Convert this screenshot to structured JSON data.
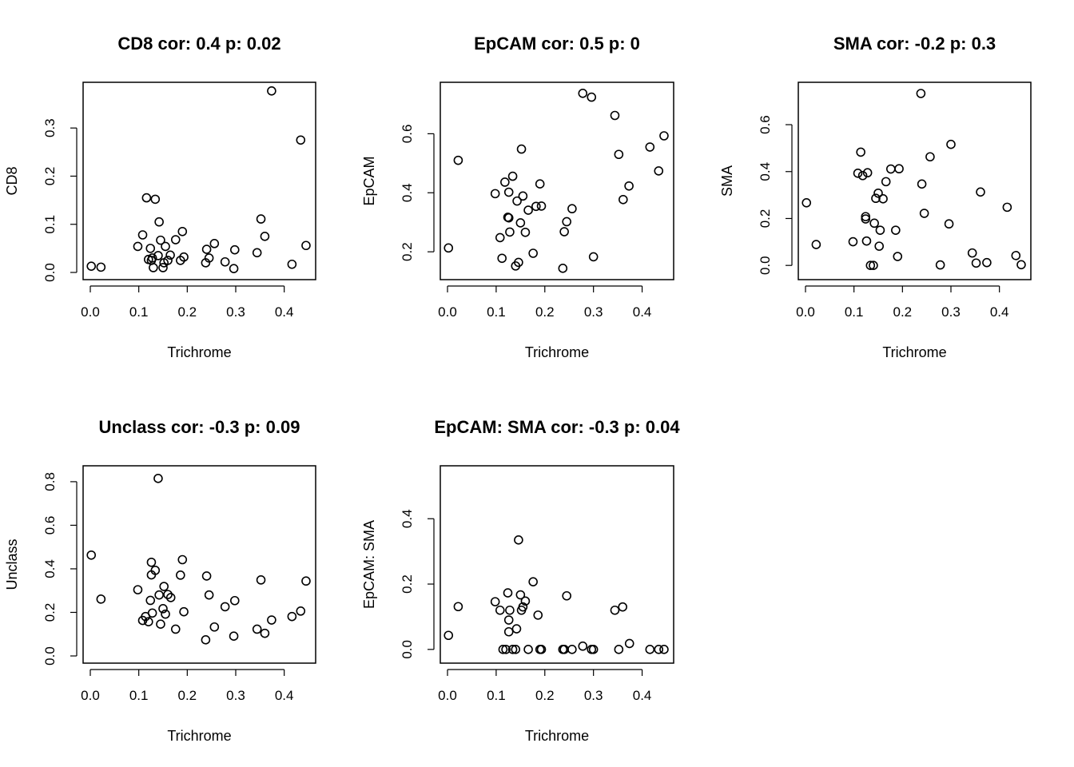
{
  "chart_data": [
    {
      "type": "scatter",
      "title": "CD8 cor: 0.4 p: 0.02",
      "xlabel": "Trichrome",
      "ylabel": "CD8",
      "xlim": [
        0.0,
        0.45
      ],
      "ylim": [
        0.0,
        0.38
      ],
      "xticks": [
        "0.0",
        "0.1",
        "0.2",
        "0.3",
        "0.4"
      ],
      "yticks": [
        "0.0",
        "0.1",
        "0.2",
        "0.3"
      ],
      "x": [
        0.002,
        0.022,
        0.098,
        0.108,
        0.116,
        0.12,
        0.124,
        0.126,
        0.128,
        0.13,
        0.134,
        0.14,
        0.142,
        0.145,
        0.15,
        0.152,
        0.155,
        0.16,
        0.165,
        0.176,
        0.186,
        0.19,
        0.193,
        0.238,
        0.24,
        0.245,
        0.256,
        0.278,
        0.296,
        0.298,
        0.344,
        0.352,
        0.36,
        0.374,
        0.416,
        0.434,
        0.445
      ],
      "y": [
        0.013,
        0.011,
        0.054,
        0.078,
        0.155,
        0.027,
        0.05,
        0.025,
        0.03,
        0.01,
        0.152,
        0.035,
        0.105,
        0.067,
        0.01,
        0.02,
        0.054,
        0.025,
        0.036,
        0.068,
        0.025,
        0.085,
        0.032,
        0.02,
        0.048,
        0.03,
        0.06,
        0.022,
        0.008,
        0.047,
        0.041,
        0.111,
        0.075,
        0.377,
        0.017,
        0.275,
        0.056
      ]
    },
    {
      "type": "scatter",
      "title": "EpCAM cor: 0.5 p: 0",
      "xlabel": "Trichrome",
      "ylabel": "EpCAM",
      "xlim": [
        0.0,
        0.45
      ],
      "ylim": [
        0.13,
        0.75
      ],
      "xticks": [
        "0.0",
        "0.1",
        "0.2",
        "0.3",
        "0.4"
      ],
      "yticks": [
        "0.2",
        "0.4",
        "0.6"
      ],
      "x": [
        0.002,
        0.022,
        0.098,
        0.108,
        0.112,
        0.118,
        0.124,
        0.126,
        0.126,
        0.128,
        0.134,
        0.14,
        0.143,
        0.146,
        0.15,
        0.152,
        0.155,
        0.16,
        0.166,
        0.176,
        0.182,
        0.19,
        0.193,
        0.237,
        0.24,
        0.245,
        0.256,
        0.278,
        0.296,
        0.3,
        0.344,
        0.352,
        0.361,
        0.373,
        0.416,
        0.434,
        0.445
      ],
      "y": [
        0.213,
        0.51,
        0.397,
        0.248,
        0.178,
        0.436,
        0.317,
        0.402,
        0.315,
        0.267,
        0.456,
        0.152,
        0.372,
        0.164,
        0.298,
        0.548,
        0.389,
        0.266,
        0.341,
        0.195,
        0.354,
        0.43,
        0.355,
        0.144,
        0.268,
        0.302,
        0.346,
        0.737,
        0.724,
        0.183,
        0.662,
        0.53,
        0.377,
        0.423,
        0.555,
        0.474,
        0.593
      ]
    },
    {
      "type": "scatter",
      "title": "SMA cor: -0.2 p: 0.3",
      "xlabel": "Trichrome",
      "ylabel": "SMA",
      "xlim": [
        0.0,
        0.45
      ],
      "ylim": [
        -0.03,
        0.75
      ],
      "xticks": [
        "0.0",
        "0.1",
        "0.2",
        "0.3",
        "0.4"
      ],
      "yticks": [
        "0.0",
        "0.2",
        "0.4",
        "0.6"
      ],
      "x": [
        0.002,
        0.022,
        0.098,
        0.108,
        0.114,
        0.118,
        0.124,
        0.124,
        0.126,
        0.128,
        0.134,
        0.14,
        0.142,
        0.145,
        0.15,
        0.152,
        0.154,
        0.16,
        0.166,
        0.176,
        0.186,
        0.19,
        0.193,
        0.238,
        0.24,
        0.245,
        0.257,
        0.278,
        0.296,
        0.3,
        0.344,
        0.352,
        0.361,
        0.374,
        0.416,
        0.434,
        0.445
      ],
      "y": [
        0.267,
        0.089,
        0.101,
        0.393,
        0.483,
        0.383,
        0.208,
        0.198,
        0.104,
        0.395,
        0.0,
        0.0,
        0.18,
        0.286,
        0.308,
        0.082,
        0.15,
        0.284,
        0.357,
        0.411,
        0.15,
        0.038,
        0.412,
        0.733,
        0.347,
        0.222,
        0.463,
        0.002,
        0.177,
        0.516,
        0.053,
        0.01,
        0.313,
        0.012,
        0.248,
        0.042,
        0.003
      ]
    },
    {
      "type": "scatter",
      "title": "Unclass cor: -0.3 p: 0.09",
      "xlabel": "Trichrome",
      "ylabel": "Unclass",
      "xlim": [
        0.0,
        0.45
      ],
      "ylim": [
        0.0,
        0.84
      ],
      "xticks": [
        "0.0",
        "0.1",
        "0.2",
        "0.3",
        "0.4"
      ],
      "yticks": [
        "0.0",
        "0.2",
        "0.4",
        "0.6",
        "0.8"
      ],
      "x": [
        0.002,
        0.022,
        0.098,
        0.108,
        0.114,
        0.12,
        0.124,
        0.126,
        0.126,
        0.128,
        0.134,
        0.14,
        0.142,
        0.145,
        0.15,
        0.152,
        0.155,
        0.16,
        0.166,
        0.176,
        0.186,
        0.19,
        0.193,
        0.238,
        0.24,
        0.245,
        0.256,
        0.278,
        0.296,
        0.298,
        0.344,
        0.352,
        0.36,
        0.374,
        0.416,
        0.434,
        0.445
      ],
      "y": [
        0.463,
        0.261,
        0.304,
        0.163,
        0.181,
        0.157,
        0.255,
        0.43,
        0.372,
        0.197,
        0.393,
        0.815,
        0.28,
        0.146,
        0.217,
        0.319,
        0.192,
        0.282,
        0.268,
        0.123,
        0.371,
        0.442,
        0.203,
        0.074,
        0.367,
        0.28,
        0.133,
        0.226,
        0.091,
        0.254,
        0.123,
        0.349,
        0.104,
        0.165,
        0.181,
        0.206,
        0.344
      ]
    },
    {
      "type": "scatter",
      "title": "EpCAM: SMA cor: -0.3 p: 0.04",
      "xlabel": "Trichrome",
      "ylabel": "EpCAM: SMA",
      "xlim": [
        0.0,
        0.45
      ],
      "ylim": [
        -0.02,
        0.54
      ],
      "xticks": [
        "0.0",
        "0.1",
        "0.2",
        "0.3",
        "0.4"
      ],
      "yticks": [
        "0.0",
        "0.2",
        "0.4"
      ],
      "x": [
        0.002,
        0.022,
        0.098,
        0.108,
        0.114,
        0.12,
        0.124,
        0.126,
        0.126,
        0.128,
        0.134,
        0.14,
        0.142,
        0.146,
        0.15,
        0.152,
        0.155,
        0.16,
        0.166,
        0.176,
        0.186,
        0.19,
        0.193,
        0.237,
        0.24,
        0.245,
        0.256,
        0.278,
        0.296,
        0.3,
        0.344,
        0.352,
        0.36,
        0.374,
        0.416,
        0.434,
        0.445
      ],
      "y": [
        0.043,
        0.131,
        0.146,
        0.12,
        0.0,
        0.0,
        0.173,
        0.09,
        0.054,
        0.12,
        0.0,
        0.0,
        0.063,
        0.335,
        0.167,
        0.12,
        0.13,
        0.148,
        0.0,
        0.207,
        0.105,
        0.0,
        0.0,
        0.0,
        0.0,
        0.164,
        0.0,
        0.01,
        0.0,
        0.0,
        0.12,
        0.0,
        0.13,
        0.018,
        0.0,
        0.0,
        0.0
      ]
    }
  ]
}
